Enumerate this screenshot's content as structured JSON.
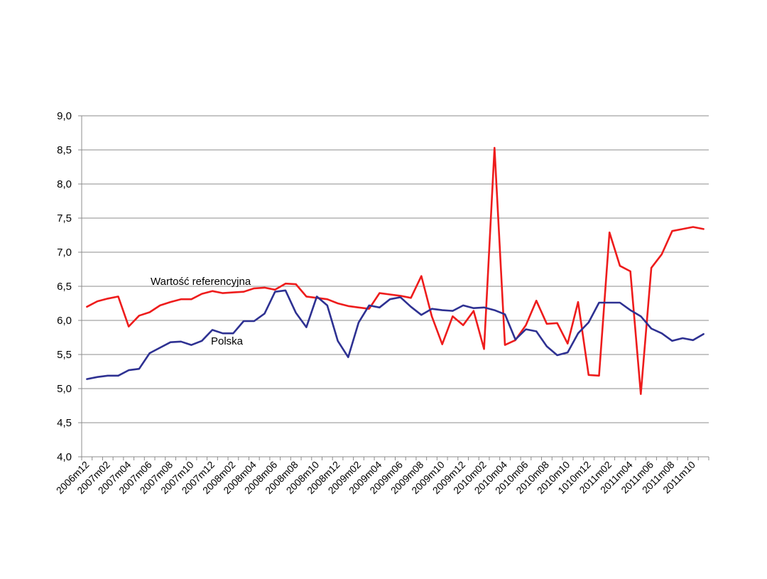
{
  "chart_data": {
    "type": "line",
    "title": "",
    "xlabel": "",
    "ylabel": "",
    "ylim": [
      4.0,
      9.0
    ],
    "yticks": [
      "4,0",
      "4,5",
      "5,0",
      "5,5",
      "6,0",
      "6,5",
      "7,0",
      "7,5",
      "8,0",
      "8,5",
      "9,0"
    ],
    "grid": true,
    "legend": "inline labels",
    "x_tick_labels": [
      "2006m12",
      "2007m02",
      "2007m04",
      "2007m06",
      "2007m08",
      "2007m10",
      "2007m12",
      "2008m02",
      "2008m04",
      "2008m06",
      "2008m08",
      "2008m10",
      "2008m12",
      "2009m02",
      "2009m04",
      "2009m06",
      "2009m08",
      "2009m10",
      "2009m12",
      "2010m02",
      "2010m04",
      "2010m06",
      "2010m08",
      "2010m10",
      "1010m12",
      "2011m02",
      "2011m04",
      "2011m06",
      "2011m08",
      "2011m10"
    ],
    "series": [
      {
        "name": "Wartość referencyjna",
        "color": "#ee1c1c",
        "values": [
          6.2,
          6.28,
          6.32,
          6.35,
          5.91,
          6.07,
          6.12,
          6.22,
          6.27,
          6.31,
          6.31,
          6.39,
          6.43,
          6.4,
          6.41,
          6.42,
          6.47,
          6.48,
          6.45,
          6.54,
          6.53,
          6.35,
          6.33,
          6.31,
          6.25,
          6.21,
          6.19,
          6.17,
          6.4,
          6.38,
          6.36,
          6.33,
          6.65,
          6.06,
          5.65,
          6.06,
          5.93,
          6.14,
          5.58,
          8.53,
          5.64,
          5.71,
          5.93,
          6.29,
          5.95,
          5.96,
          5.66,
          6.27,
          5.2,
          5.19,
          7.29,
          6.8,
          6.72,
          4.92,
          6.77,
          6.97,
          7.31,
          7.34,
          7.37,
          7.34
        ]
      },
      {
        "name": "Polska",
        "color": "#2e3192",
        "values": [
          5.14,
          5.17,
          5.19,
          5.19,
          5.27,
          5.29,
          5.52,
          5.6,
          5.68,
          5.69,
          5.64,
          5.7,
          5.86,
          5.81,
          5.81,
          5.99,
          5.99,
          6.1,
          6.42,
          6.44,
          6.11,
          5.9,
          6.35,
          6.22,
          5.7,
          5.46,
          5.97,
          6.22,
          6.19,
          6.31,
          6.34,
          6.2,
          6.08,
          6.17,
          6.15,
          6.14,
          6.22,
          6.18,
          6.19,
          6.15,
          6.09,
          5.72,
          5.87,
          5.84,
          5.62,
          5.49,
          5.53,
          5.81,
          5.97,
          6.26,
          6.26,
          6.26,
          6.15,
          6.06,
          5.88,
          5.81,
          5.7,
          5.74,
          5.71,
          5.8
        ]
      }
    ]
  }
}
